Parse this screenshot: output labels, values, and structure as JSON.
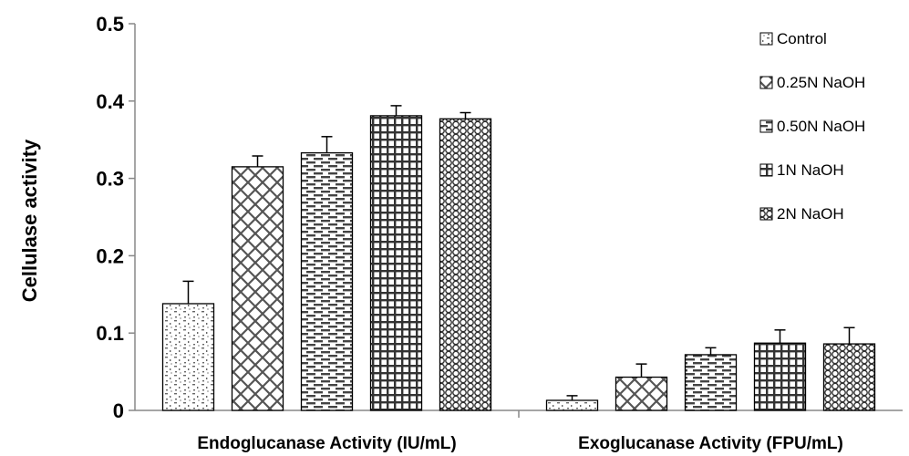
{
  "chart_data": {
    "type": "bar",
    "ylabel": "Cellulase activity",
    "ylim": [
      0,
      0.5
    ],
    "yticks": [
      "0",
      "0.1",
      "0.2",
      "0.3",
      "0.4",
      "0.5"
    ],
    "categories": [
      "Endoglucanase Activity (IU/mL)",
      "Exoglucanase Activity (FPU/mL)"
    ],
    "legend_position": "top-right",
    "grid": false,
    "series": [
      {
        "name": "Control",
        "values": [
          0.138,
          0.013
        ],
        "errors": [
          0.029,
          0.006
        ]
      },
      {
        "name": "0.25N NaOH",
        "values": [
          0.315,
          0.043
        ],
        "errors": [
          0.014,
          0.017
        ]
      },
      {
        "name": "0.50N NaOH",
        "values": [
          0.333,
          0.072
        ],
        "errors": [
          0.021,
          0.009
        ]
      },
      {
        "name": "1N NaOH",
        "values": [
          0.381,
          0.087
        ],
        "errors": [
          0.013,
          0.017
        ]
      },
      {
        "name": "2N NaOH",
        "values": [
          0.377,
          0.086
        ],
        "errors": [
          0.008,
          0.021
        ]
      }
    ]
  }
}
